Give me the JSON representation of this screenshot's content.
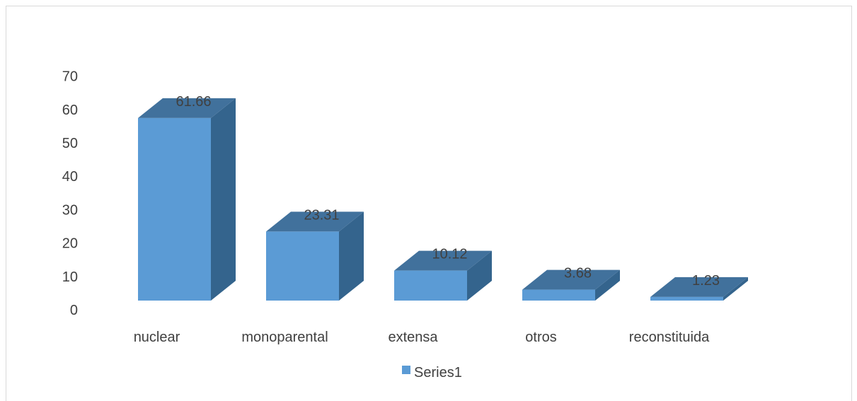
{
  "chart_data": {
    "type": "bar",
    "style": "3d-column",
    "categories": [
      "nuclear",
      "monoparental",
      "extensa",
      "otros",
      "reconstituida"
    ],
    "series": [
      {
        "name": "Series1",
        "values": [
          61.66,
          23.31,
          10.12,
          3.68,
          1.23
        ],
        "color": "#5b9bd5"
      }
    ],
    "data_labels": [
      "61.66",
      "23.31",
      "10.12",
      "3.68",
      "1.23"
    ],
    "yticks": [
      0,
      10,
      20,
      30,
      40,
      50,
      60,
      70
    ],
    "ylim": [
      0,
      70
    ],
    "grid": false,
    "legend": {
      "position": "bottom",
      "entries": [
        "Series1"
      ]
    }
  },
  "colors": {
    "front": "#5b9bd5",
    "top": "#41719c",
    "side": "#34648d",
    "text": "#404040"
  }
}
